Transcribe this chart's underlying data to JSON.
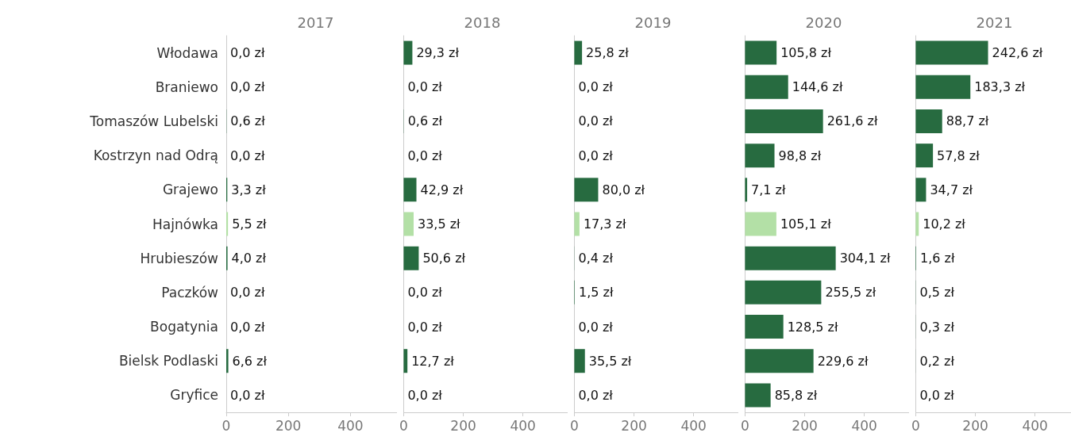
{
  "chart_data": [
    {
      "type": "bar",
      "orientation": "horizontal",
      "title": "2017",
      "categories": [
        "Włodawa",
        "Braniewo",
        "Tomaszów Lubelski",
        "Kostrzyn nad Odrą",
        "Grajewo",
        "Hajnówka",
        "Hrubieszów",
        "Paczków",
        "Bogatynia",
        "Bielsk Podlaski",
        "Gryfice"
      ],
      "values": [
        0.0,
        0.0,
        0.6,
        0.0,
        3.3,
        5.5,
        4.0,
        0.0,
        0.0,
        6.6,
        0.0
      ],
      "value_labels": [
        "0,0 zł",
        "0,0 zł",
        "0,6 zł",
        "0,0 zł",
        "3,3 zł",
        "5,5 zł",
        "4,0 zł",
        "0,0 zł",
        "0,0 zł",
        "6,6 zł",
        "0,0 zł"
      ],
      "colors": [
        "#276b40",
        "#276b40",
        "#276b40",
        "#276b40",
        "#276b40",
        "#b3e0a6",
        "#276b40",
        "#276b40",
        "#276b40",
        "#276b40",
        "#276b40"
      ],
      "xlim": [
        0,
        550
      ],
      "xticks": [
        0,
        200,
        400
      ]
    },
    {
      "type": "bar",
      "orientation": "horizontal",
      "title": "2018",
      "categories": [
        null,
        null,
        null,
        null,
        null,
        null,
        null,
        null,
        null,
        null,
        null
      ],
      "values": [
        29.3,
        0.0,
        0.6,
        0.0,
        42.9,
        33.5,
        50.6,
        0.0,
        0.0,
        12.7,
        0.0
      ],
      "value_labels": [
        "29,3 zł",
        "0,0 zł",
        "0,6 zł",
        "0,0 zł",
        "42,9 zł",
        "33,5 zł",
        "50,6 zł",
        "0,0 zł",
        "0,0 zł",
        "12,7 zł",
        "0,0 zł"
      ],
      "colors": [
        "#276b40",
        "#276b40",
        "#276b40",
        "#276b40",
        "#276b40",
        "#b3e0a6",
        "#276b40",
        "#276b40",
        "#276b40",
        "#276b40",
        "#276b40"
      ],
      "xlim": [
        0,
        550
      ],
      "xticks": [
        0,
        200,
        400
      ],
      "tick_labels": "x"
    },
    {
      "type": "bar",
      "orientation": "horizontal",
      "title": "2019",
      "categories": [
        null,
        null,
        null,
        null,
        null,
        null,
        null,
        null,
        null,
        null,
        null
      ],
      "values": [
        25.8,
        0.0,
        0.0,
        0.0,
        80.0,
        17.3,
        0.4,
        1.5,
        0.0,
        35.5,
        0.0
      ],
      "value_labels": [
        "25,8 zł",
        "0,0 zł",
        "0,0 zł",
        "0,0 zł",
        "80,0 zł",
        "17,3 zł",
        "0,4 zł",
        "1,5 zł",
        "0,0 zł",
        "35,5 zł",
        "0,0 zł"
      ],
      "colors": [
        "#276b40",
        "#276b40",
        "#276b40",
        "#276b40",
        "#276b40",
        "#b3e0a6",
        "#276b40",
        "#276b40",
        "#276b40",
        "#276b40",
        "#276b40"
      ],
      "xlim": [
        0,
        550
      ],
      "xticks": [
        0,
        200,
        400
      ],
      "tick_labels": "x"
    },
    {
      "type": "bar",
      "orientation": "horizontal",
      "title": "2020",
      "categories": [
        null,
        null,
        null,
        null,
        null,
        null,
        null,
        null,
        null,
        null,
        null
      ],
      "values": [
        105.8,
        144.6,
        261.6,
        98.8,
        7.1,
        105.1,
        304.1,
        255.5,
        128.5,
        229.6,
        85.8
      ],
      "value_labels": [
        "105,8 zł",
        "144,6 zł",
        "261,6 zł",
        "98,8 zł",
        "7,1 zł",
        "105,1 zł",
        "304,1 zł",
        "255,5 zł",
        "128,5 zł",
        "229,6 zł",
        "85,8 zł"
      ],
      "colors": [
        "#276b40",
        "#276b40",
        "#276b40",
        "#276b40",
        "#276b40",
        "#b3e0a6",
        "#276b40",
        "#276b40",
        "#276b40",
        "#276b40",
        "#276b40"
      ],
      "xlim": [
        0,
        550
      ],
      "xticks": [
        0,
        200,
        400
      ],
      "tick_labels": "x"
    },
    {
      "type": "bar",
      "orientation": "horizontal",
      "title": "2021",
      "categories": [
        null,
        null,
        null,
        null,
        null,
        null,
        null,
        null,
        null,
        null,
        null
      ],
      "values": [
        242.6,
        183.3,
        88.7,
        57.8,
        34.7,
        10.2,
        1.6,
        0.5,
        0.3,
        0.2,
        0.0
      ],
      "value_labels": [
        "242,6 zł",
        "183,3 zł",
        "88,7 zł",
        "57,8 zł",
        "34,7 zł",
        "10,2 zł",
        "1,6 zł",
        "0,5 zł",
        "0,3 zł",
        "0,2 zł",
        "0,0 zł"
      ],
      "colors": [
        "#276b40",
        "#276b40",
        "#276b40",
        "#276b40",
        "#276b40",
        "#b3e0a6",
        "#276b40",
        "#276b40",
        "#276b40",
        "#276b40",
        "#276b40"
      ],
      "xlim": [
        0,
        550
      ],
      "xticks": [
        0,
        200,
        400
      ],
      "tick_labels": "x"
    }
  ]
}
